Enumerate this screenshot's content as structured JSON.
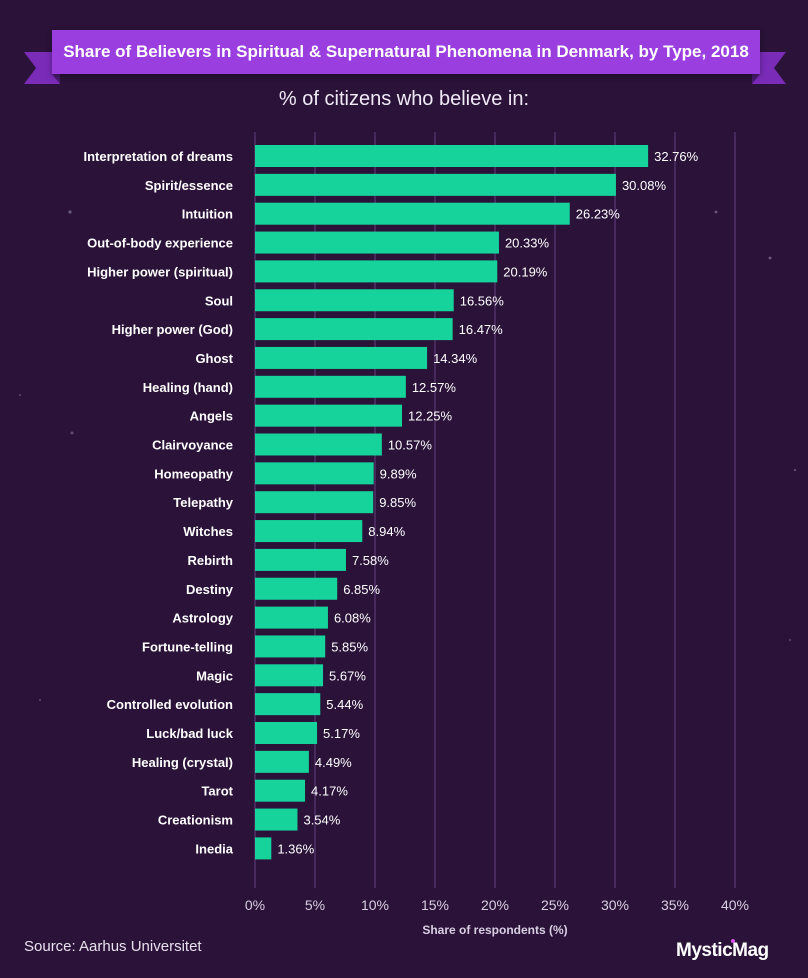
{
  "header": {
    "title": "Share of Believers in Spiritual & Supernatural Phenomena in Denmark, by Type, 2018",
    "subtitle": "% of citizens who believe in:"
  },
  "footer": {
    "source": "Source: Aarhus Universitet",
    "brand": "MysticMag"
  },
  "colors": {
    "background": "#2a1238",
    "bar": "#15d39a",
    "banner": "#9b3ee0",
    "grid": "#5b3a73"
  },
  "chart_data": {
    "type": "bar",
    "orientation": "horizontal",
    "categories": [
      "Interpretation of dreams",
      "Spirit/essence",
      "Intuition",
      "Out-of-body experience",
      "Higher power (spiritual)",
      "Soul",
      "Higher power (God)",
      "Ghost",
      "Healing (hand)",
      "Angels",
      "Clairvoyance",
      "Homeopathy",
      "Telepathy",
      "Witches",
      "Rebirth",
      "Destiny",
      "Astrology",
      "Fortune-telling",
      "Magic",
      "Controlled evolution",
      "Luck/bad luck",
      "Healing (crystal)",
      "Tarot",
      "Creationism",
      "Inedia"
    ],
    "values": [
      32.76,
      30.08,
      26.23,
      20.33,
      20.19,
      16.56,
      16.47,
      14.34,
      12.57,
      12.25,
      10.57,
      9.89,
      9.85,
      8.94,
      7.58,
      6.85,
      6.08,
      5.85,
      5.67,
      5.44,
      5.17,
      4.49,
      4.17,
      3.54,
      1.36
    ],
    "value_labels": [
      "32.76%",
      "30.08%",
      "26.23%",
      "20.33%",
      "20.19%",
      "16.56%",
      "16.47%",
      "14.34%",
      "12.57%",
      "12.25%",
      "10.57%",
      "9.89%",
      "9.85%",
      "8.94%",
      "7.58%",
      "6.85%",
      "6.08%",
      "5.85%",
      "5.67%",
      "5.44%",
      "5.17%",
      "4.49%",
      "4.17%",
      "3.54%",
      "1.36%"
    ],
    "xlabel": "Share of respondents (%)",
    "xlim": [
      0,
      40
    ],
    "xticks": [
      0,
      5,
      10,
      15,
      20,
      25,
      30,
      35,
      40
    ],
    "xtick_labels": [
      "0%",
      "5%",
      "10%",
      "15%",
      "20%",
      "25%",
      "30%",
      "35%",
      "40%"
    ],
    "grid": true
  }
}
